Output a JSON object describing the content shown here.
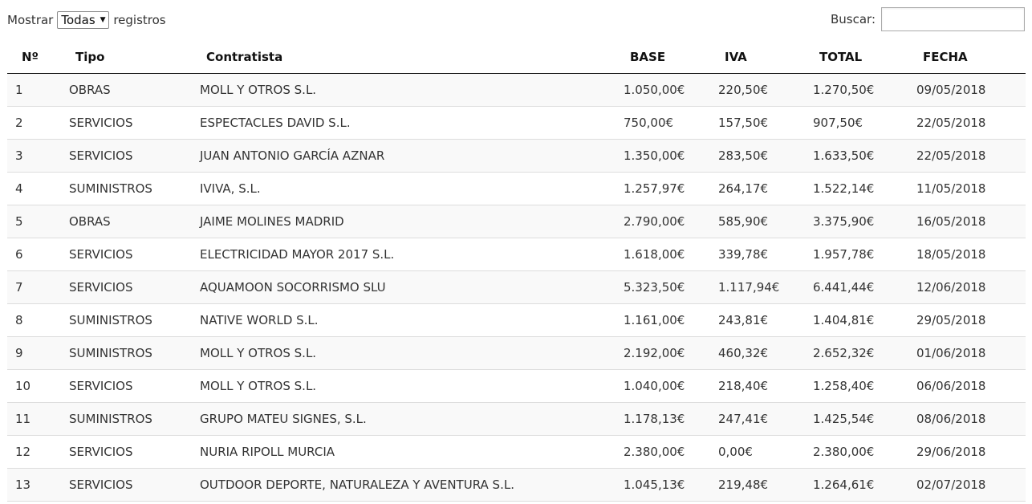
{
  "length_control": {
    "prefix": "Mostrar",
    "selected": "Todas",
    "suffix": "registros"
  },
  "search": {
    "label": "Buscar:",
    "value": ""
  },
  "columns": [
    "Nº",
    "Tipo",
    "Contratista",
    "BASE",
    "IVA",
    "TOTAL",
    "FECHA"
  ],
  "rows": [
    {
      "num": "1",
      "tipo": "OBRAS",
      "contratista": "MOLL Y OTROS S.L.",
      "base": "1.050,00€",
      "iva": "220,50€",
      "total": "1.270,50€",
      "fecha": "09/05/2018"
    },
    {
      "num": "2",
      "tipo": "SERVICIOS",
      "contratista": "ESPECTACLES DAVID S.L.",
      "base": "750,00€",
      "iva": "157,50€",
      "total": "907,50€",
      "fecha": "22/05/2018"
    },
    {
      "num": "3",
      "tipo": "SERVICIOS",
      "contratista": "JUAN ANTONIO GARCÍA AZNAR",
      "base": "1.350,00€",
      "iva": "283,50€",
      "total": "1.633,50€",
      "fecha": "22/05/2018"
    },
    {
      "num": "4",
      "tipo": "SUMINISTROS",
      "contratista": "IVIVA, S.L.",
      "base": "1.257,97€",
      "iva": "264,17€",
      "total": "1.522,14€",
      "fecha": "11/05/2018"
    },
    {
      "num": "5",
      "tipo": "OBRAS",
      "contratista": "JAIME MOLINES MADRID",
      "base": "2.790,00€",
      "iva": "585,90€",
      "total": "3.375,90€",
      "fecha": "16/05/2018"
    },
    {
      "num": "6",
      "tipo": "SERVICIOS",
      "contratista": "ELECTRICIDAD MAYOR 2017 S.L.",
      "base": "1.618,00€",
      "iva": "339,78€",
      "total": "1.957,78€",
      "fecha": "18/05/2018"
    },
    {
      "num": "7",
      "tipo": "SERVICIOS",
      "contratista": "AQUAMOON SOCORRISMO SLU",
      "base": "5.323,50€",
      "iva": "1.117,94€",
      "total": "6.441,44€",
      "fecha": "12/06/2018"
    },
    {
      "num": "8",
      "tipo": "SUMINISTROS",
      "contratista": "NATIVE WORLD S.L.",
      "base": "1.161,00€",
      "iva": "243,81€",
      "total": "1.404,81€",
      "fecha": "29/05/2018"
    },
    {
      "num": "9",
      "tipo": "SUMINISTROS",
      "contratista": "MOLL Y OTROS S.L.",
      "base": "2.192,00€",
      "iva": "460,32€",
      "total": "2.652,32€",
      "fecha": "01/06/2018"
    },
    {
      "num": "10",
      "tipo": "SERVICIOS",
      "contratista": "MOLL Y OTROS S.L.",
      "base": "1.040,00€",
      "iva": "218,40€",
      "total": "1.258,40€",
      "fecha": "06/06/2018"
    },
    {
      "num": "11",
      "tipo": "SUMINISTROS",
      "contratista": "GRUPO MATEU SIGNES, S.L.",
      "base": "1.178,13€",
      "iva": "247,41€",
      "total": "1.425,54€",
      "fecha": "08/06/2018"
    },
    {
      "num": "12",
      "tipo": "SERVICIOS",
      "contratista": "NURIA RIPOLL MURCIA",
      "base": "2.380,00€",
      "iva": "0,00€",
      "total": "2.380,00€",
      "fecha": "29/06/2018"
    },
    {
      "num": "13",
      "tipo": "SERVICIOS",
      "contratista": "OUTDOOR DEPORTE, NATURALEZA Y AVENTURA S.L.",
      "base": "1.045,13€",
      "iva": "219,48€",
      "total": "1.264,61€",
      "fecha": "02/07/2018"
    }
  ]
}
